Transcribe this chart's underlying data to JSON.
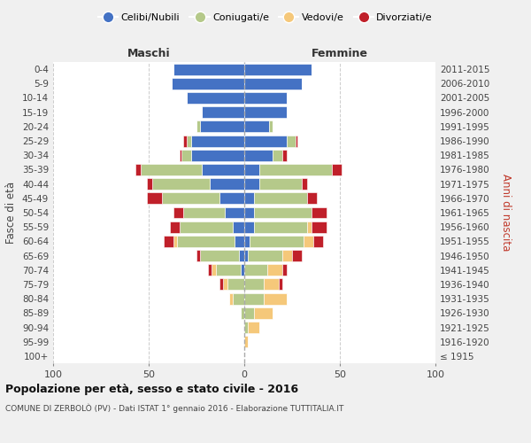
{
  "age_groups": [
    "100+",
    "95-99",
    "90-94",
    "85-89",
    "80-84",
    "75-79",
    "70-74",
    "65-69",
    "60-64",
    "55-59",
    "50-54",
    "45-49",
    "40-44",
    "35-39",
    "30-34",
    "25-29",
    "20-24",
    "15-19",
    "10-14",
    "5-9",
    "0-4"
  ],
  "birth_years": [
    "≤ 1915",
    "1916-1920",
    "1921-1925",
    "1926-1930",
    "1931-1935",
    "1936-1940",
    "1941-1945",
    "1946-1950",
    "1951-1955",
    "1956-1960",
    "1961-1965",
    "1966-1970",
    "1971-1975",
    "1976-1980",
    "1981-1985",
    "1986-1990",
    "1991-1995",
    "1996-2000",
    "2001-2005",
    "2006-2010",
    "2011-2015"
  ],
  "colors": {
    "celibe": "#4472C4",
    "coniugato": "#b5c98a",
    "vedovo": "#f5c87a",
    "divorziato": "#c0202a"
  },
  "maschi": {
    "celibe": [
      0,
      0,
      0,
      0,
      0,
      0,
      2,
      3,
      5,
      6,
      10,
      13,
      18,
      22,
      28,
      28,
      23,
      22,
      30,
      38,
      37
    ],
    "coniugato": [
      0,
      0,
      0,
      2,
      6,
      9,
      13,
      20,
      30,
      28,
      22,
      30,
      30,
      32,
      5,
      2,
      2,
      0,
      0,
      0,
      0
    ],
    "vedovo": [
      0,
      0,
      0,
      0,
      2,
      2,
      2,
      0,
      2,
      0,
      0,
      0,
      0,
      0,
      0,
      0,
      0,
      0,
      0,
      0,
      0
    ],
    "divorziato": [
      0,
      0,
      0,
      0,
      0,
      2,
      2,
      2,
      5,
      5,
      5,
      8,
      3,
      3,
      1,
      2,
      0,
      0,
      0,
      0,
      0
    ]
  },
  "femmine": {
    "nubile": [
      0,
      0,
      0,
      0,
      0,
      0,
      0,
      2,
      3,
      5,
      5,
      5,
      8,
      8,
      15,
      22,
      13,
      22,
      22,
      30,
      35
    ],
    "coniugata": [
      0,
      0,
      2,
      5,
      10,
      10,
      12,
      18,
      28,
      28,
      30,
      28,
      22,
      38,
      5,
      5,
      2,
      0,
      0,
      0,
      0
    ],
    "vedova": [
      0,
      2,
      6,
      10,
      12,
      8,
      8,
      5,
      5,
      2,
      0,
      0,
      0,
      0,
      0,
      0,
      0,
      0,
      0,
      0,
      0
    ],
    "divorziata": [
      0,
      0,
      0,
      0,
      0,
      2,
      2,
      5,
      5,
      8,
      8,
      5,
      3,
      5,
      2,
      1,
      0,
      0,
      0,
      0,
      0
    ]
  },
  "xlim": [
    -100,
    100
  ],
  "xticks": [
    -100,
    -50,
    0,
    50,
    100
  ],
  "xticklabels": [
    "100",
    "50",
    "0",
    "50",
    "100"
  ],
  "title": "Popolazione per età, sesso e stato civile - 2016",
  "subtitle": "COMUNE DI ZERBOLÒ (PV) - Dati ISTAT 1° gennaio 2016 - Elaborazione TUTTITALIA.IT",
  "ylabel_left": "Fasce di età",
  "ylabel_right": "Anni di nascita",
  "label_maschi": "Maschi",
  "label_femmine": "Femmine",
  "legend_labels": [
    "Celibi/Nubili",
    "Coniugati/e",
    "Vedovi/e",
    "Divorziati/e"
  ],
  "bg_color": "#f0f0f0",
  "plot_bg": "#ffffff"
}
